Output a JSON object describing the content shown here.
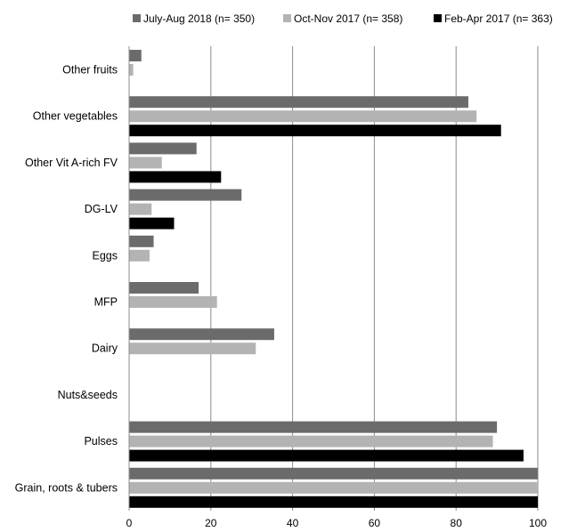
{
  "chart_data": {
    "type": "bar",
    "orientation": "horizontal",
    "categories": [
      "Other fruits",
      "Other vegetables",
      "Other Vit A-rich FV",
      "DG-LV",
      "Eggs",
      "MFP",
      "Dairy",
      "Nuts&seeds",
      "Pulses",
      "Grain, roots & tubers"
    ],
    "series": [
      {
        "name": "July-Aug 2018 (n= 350)",
        "color": "#6b6b6b",
        "values": [
          3,
          83,
          16.5,
          27.5,
          6,
          17,
          35.5,
          0,
          90,
          100
        ]
      },
      {
        "name": "Oct-Nov 2017 (n= 358)",
        "color": "#b3b3b3",
        "values": [
          1,
          85,
          8,
          5.5,
          5,
          21.5,
          31,
          0,
          89,
          100
        ]
      },
      {
        "name": "Feb-Apr 2017 (n= 363)",
        "color": "#000000",
        "values": [
          0,
          91,
          22.5,
          11,
          0,
          0,
          0,
          0,
          96.5,
          100
        ]
      }
    ],
    "xlim": [
      0,
      100
    ],
    "xticks": [
      "0",
      "20",
      "40",
      "60",
      "80",
      "100"
    ],
    "grid": true,
    "legend_position": "top"
  }
}
